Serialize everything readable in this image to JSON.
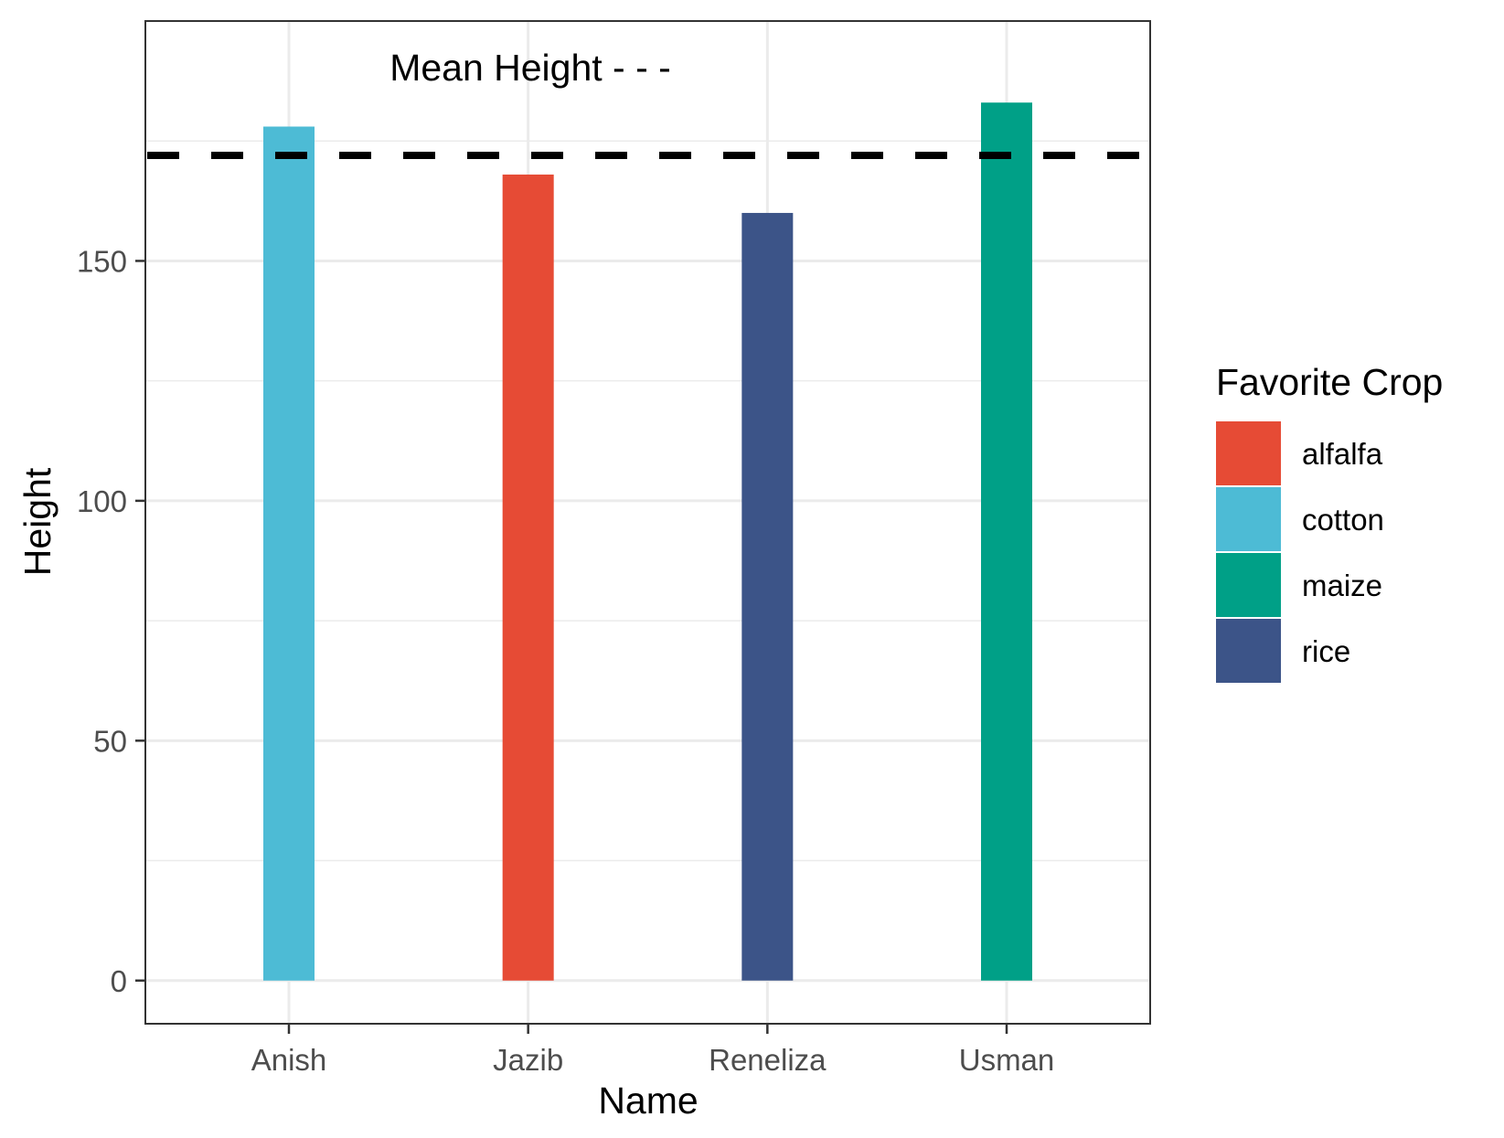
{
  "chart_data": {
    "type": "bar",
    "categories": [
      "Anish",
      "Jazib",
      "Reneliza",
      "Usman"
    ],
    "values": [
      178,
      168,
      160,
      183
    ],
    "fill_group": [
      "cotton",
      "alfalfa",
      "rice",
      "maize"
    ],
    "xlabel": "Name",
    "ylabel": "Height",
    "ylim": [
      -9,
      200
    ],
    "yticks": [
      0,
      50,
      100,
      150
    ],
    "grid": true,
    "reference_line": {
      "value": 172,
      "style": "dashed"
    },
    "annotation": "Mean Height - - -",
    "legend": {
      "title": "Favorite Crop",
      "position": "right",
      "entries": [
        {
          "label": "alfalfa",
          "color": "#E64B35"
        },
        {
          "label": "cotton",
          "color": "#4DBBD5"
        },
        {
          "label": "maize",
          "color": "#00A087"
        },
        {
          "label": "rice",
          "color": "#3C5488"
        }
      ]
    }
  }
}
